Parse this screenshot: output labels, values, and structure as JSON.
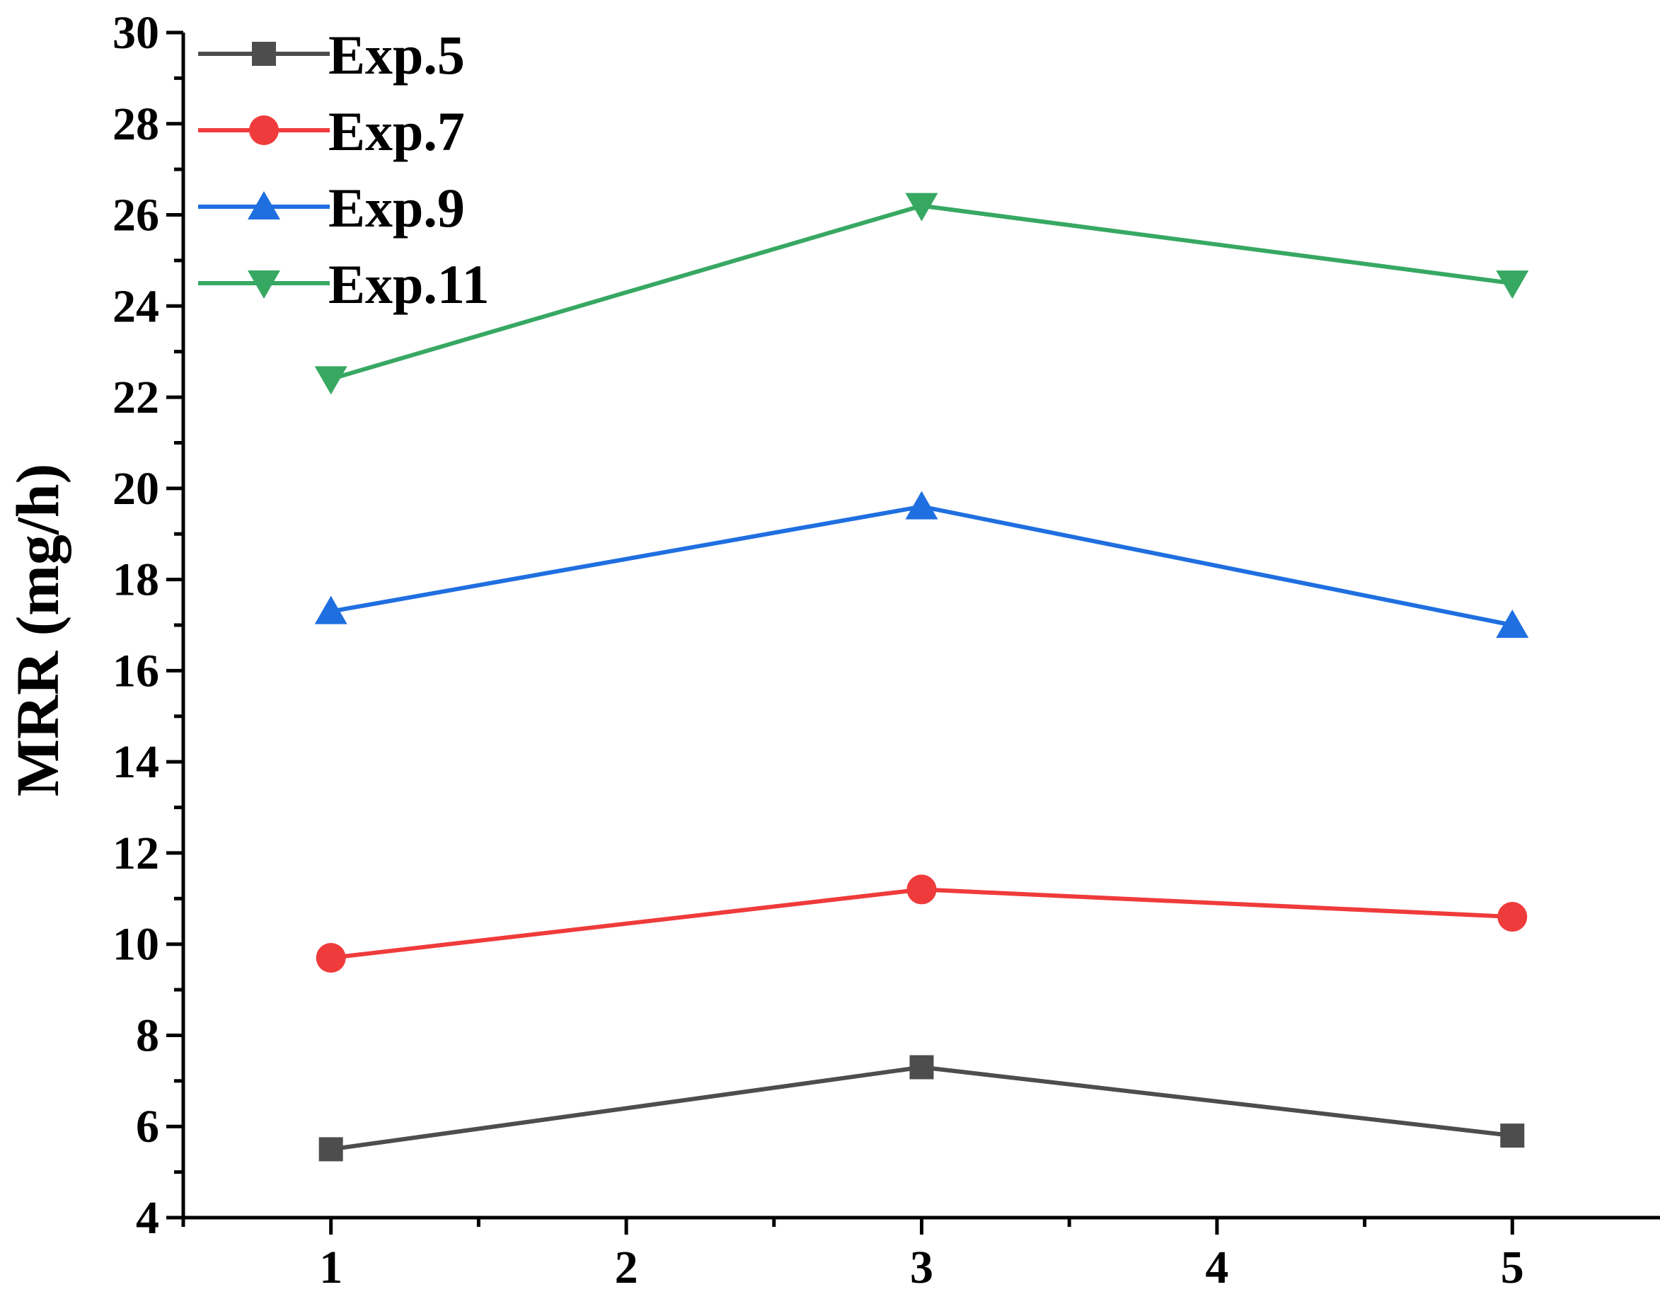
{
  "chart_data": {
    "type": "line",
    "title": "",
    "xlabel": "",
    "ylabel": "MRR (mg/h)",
    "x": [
      1,
      3,
      5
    ],
    "xlim": [
      0.5,
      5.5
    ],
    "ylim": [
      4,
      30
    ],
    "xticks": [
      1,
      2,
      3,
      4,
      5
    ],
    "yticks": [
      4,
      6,
      8,
      10,
      12,
      14,
      16,
      18,
      20,
      22,
      24,
      26,
      28,
      30
    ],
    "grid": false,
    "legend_position": "top-left",
    "series": [
      {
        "name": "Exp.5",
        "values": [
          5.5,
          7.3,
          5.8
        ],
        "color": "#4d4d4d",
        "marker": "square"
      },
      {
        "name": "Exp.7",
        "values": [
          9.7,
          11.2,
          10.6
        ],
        "color": "#ef3b3b",
        "marker": "circle"
      },
      {
        "name": "Exp.9",
        "values": [
          17.3,
          19.6,
          17.0
        ],
        "color": "#1f6fe0",
        "marker": "triangle-up"
      },
      {
        "name": "Exp.11",
        "values": [
          22.4,
          26.2,
          24.5
        ],
        "color": "#37a862",
        "marker": "triangle-down"
      }
    ]
  }
}
